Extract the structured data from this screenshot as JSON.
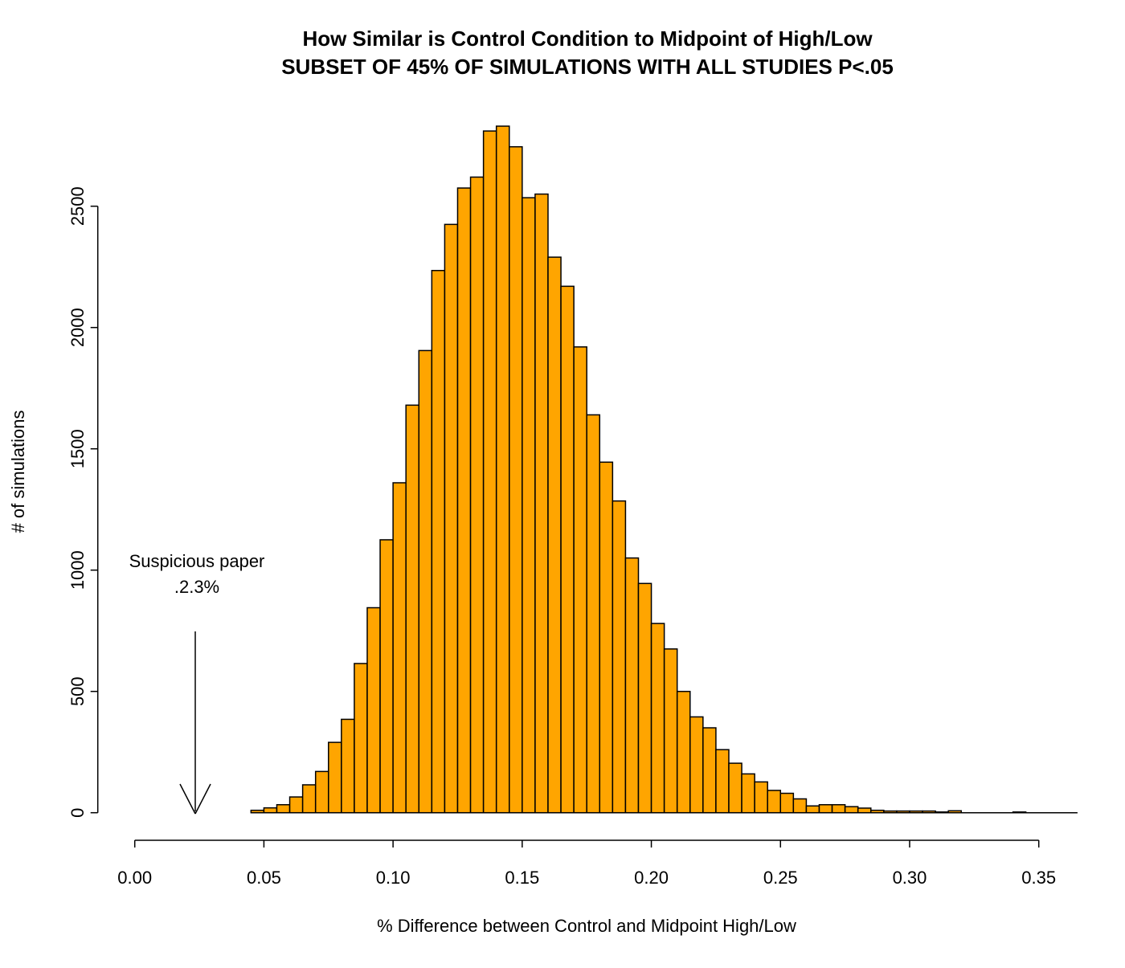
{
  "chart_data": {
    "type": "bar",
    "subtype": "histogram",
    "title": "How Similar is Control Condition to Midpoint of High/Low",
    "subtitle": "SUBSET OF 45% OF SIMULATIONS WITH ALL STUDIES P<.05",
    "xlabel": "% Difference between Control and Midpoint High/Low",
    "ylabel": "# of simulations",
    "bin_start": 0.045,
    "bin_width": 0.005,
    "counts": [
      10,
      20,
      33,
      65,
      115,
      170,
      290,
      385,
      615,
      845,
      1125,
      1360,
      1680,
      1905,
      2235,
      2425,
      2575,
      2620,
      2810,
      2830,
      2745,
      2535,
      2550,
      2290,
      2170,
      1920,
      1640,
      1445,
      1285,
      1050,
      945,
      780,
      675,
      500,
      395,
      350,
      260,
      204,
      160,
      127,
      92,
      80,
      57,
      28,
      33,
      33,
      25,
      19,
      10,
      7,
      7,
      7,
      7,
      3,
      8,
      0,
      0,
      0,
      0,
      3,
      0,
      0,
      0,
      0
    ],
    "x_ticks": [
      0.0,
      0.05,
      0.1,
      0.15,
      0.2,
      0.25,
      0.3,
      0.35
    ],
    "x_tick_labels": [
      "0.00",
      "0.05",
      "0.10",
      "0.15",
      "0.20",
      "0.25",
      "0.30",
      "0.35"
    ],
    "y_ticks": [
      0,
      500,
      1000,
      1500,
      2000,
      2500
    ],
    "y_tick_labels": [
      "0",
      "500",
      "1000",
      "1500",
      "2000",
      "2500"
    ],
    "xlim": [
      0,
      0.365
    ],
    "ylim": [
      0,
      2500
    ],
    "grid": false,
    "legend": "none",
    "bar_fill": "#FFA500",
    "bar_stroke": "#000000",
    "background": "#FFFFFF",
    "annotation": {
      "line1": "Suspicious paper",
      "line2": ".2.3%",
      "arrow_x": 0.023
    }
  }
}
